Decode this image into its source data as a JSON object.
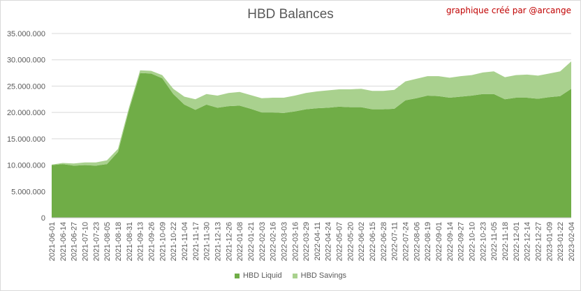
{
  "credit": "graphique créé par @arcange",
  "chart_data": {
    "type": "area",
    "stacked": true,
    "title": "HBD Balances",
    "xlabel": "",
    "ylabel": "",
    "ylim": [
      0,
      35000000
    ],
    "y_ticks": [
      "0",
      "5.000.000",
      "10.000.000",
      "15.000.000",
      "20.000.000",
      "25.000.000",
      "30.000.000",
      "35.000.000"
    ],
    "grid": true,
    "legend_position": "bottom",
    "categories": [
      "2021-06-01",
      "2021-06-14",
      "2021-06-27",
      "2021-07-10",
      "2021-07-23",
      "2021-08-05",
      "2021-08-18",
      "2021-08-31",
      "2021-09-13",
      "2021-09-26",
      "2021-10-09",
      "2021-10-22",
      "2021-11-04",
      "2021-11-17",
      "2021-11-30",
      "2021-12-13",
      "2021-12-26",
      "2022-01-08",
      "2022-01-21",
      "2022-02-03",
      "2022-02-16",
      "2022-03-03",
      "2022-03-16",
      "2022-03-29",
      "2022-04-11",
      "2022-04-24",
      "2022-05-07",
      "2022-05-20",
      "2022-06-02",
      "2022-06-15",
      "2022-06-28",
      "2022-07-11",
      "2022-07-24",
      "2022-08-06",
      "2022-08-19",
      "2022-09-01",
      "2022-09-14",
      "2022-09-27",
      "2022-10-10",
      "2022-10-23",
      "2022-11-05",
      "2022-11-18",
      "2022-12-01",
      "2022-12-14",
      "2022-12-27",
      "2023-01-09",
      "2023-01-22",
      "2023-02-04"
    ],
    "series": [
      {
        "name": "HBD Liquid",
        "color": "#70ad47",
        "values": [
          10000000,
          10200000,
          9900000,
          10000000,
          9900000,
          10200000,
          12500000,
          20500000,
          27500000,
          27400000,
          26500000,
          23500000,
          21500000,
          20500000,
          21500000,
          20900000,
          21200000,
          21300000,
          20700000,
          20000000,
          20000000,
          19900000,
          20200000,
          20600000,
          20800000,
          20900000,
          21100000,
          21000000,
          21000000,
          20600000,
          20600000,
          20700000,
          22300000,
          22700000,
          23200000,
          23100000,
          22800000,
          23000000,
          23200000,
          23500000,
          23500000,
          22500000,
          22800000,
          22800000,
          22600000,
          22900000,
          23100000,
          24500000
        ]
      },
      {
        "name": "HBD Savings",
        "color": "#a9d18e",
        "values": [
          100000,
          200000,
          400000,
          500000,
          600000,
          700000,
          600000,
          500000,
          500000,
          500000,
          600000,
          1000000,
          1500000,
          2000000,
          2000000,
          2300000,
          2500000,
          2600000,
          2600000,
          2700000,
          2800000,
          2900000,
          3000000,
          3100000,
          3200000,
          3300000,
          3300000,
          3400000,
          3500000,
          3500000,
          3500000,
          3600000,
          3600000,
          3700000,
          3700000,
          3800000,
          3800000,
          3900000,
          3900000,
          4100000,
          4300000,
          4200000,
          4300000,
          4400000,
          4400000,
          4500000,
          4700000,
          5200000
        ]
      }
    ]
  }
}
